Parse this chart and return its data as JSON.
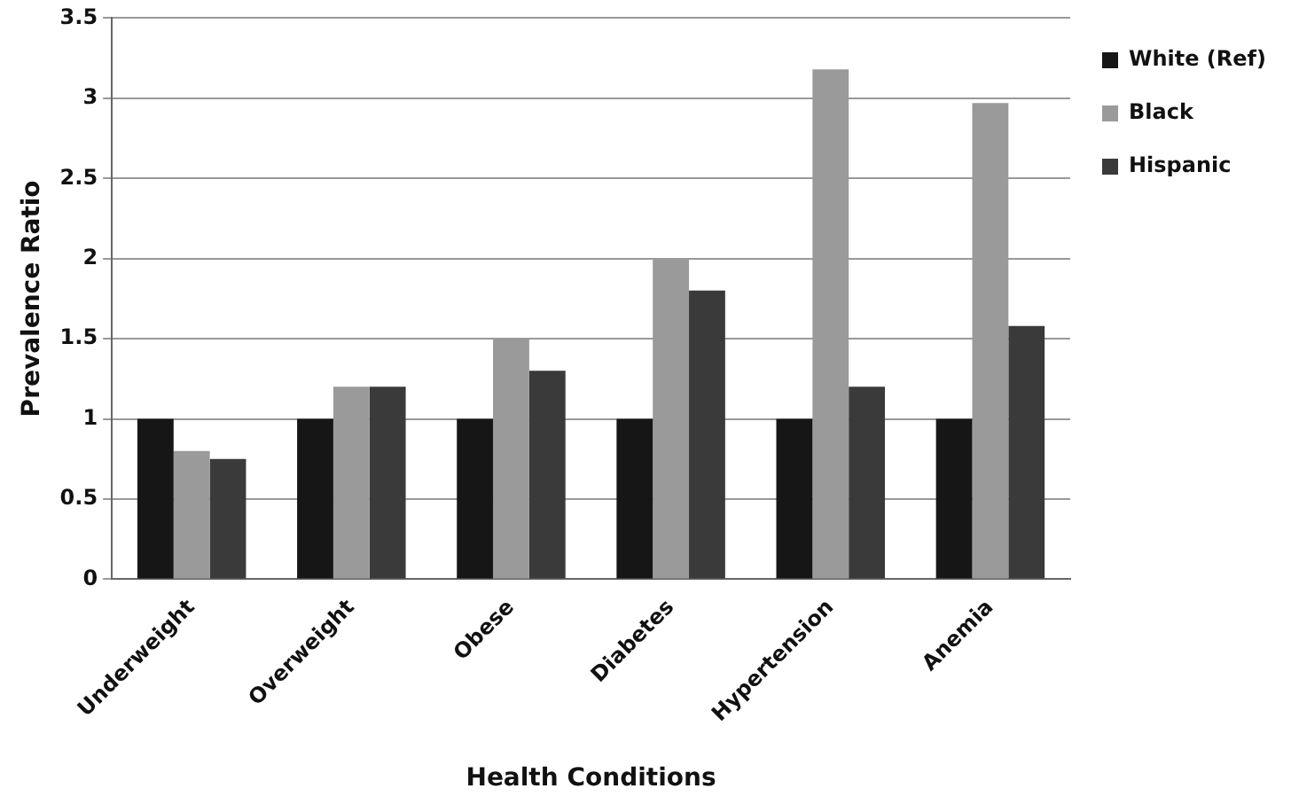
{
  "chart_data": {
    "type": "bar",
    "xlabel": "Health Conditions",
    "ylabel": "Prevalence Ratio",
    "categories": [
      "Underweight",
      "Overweight",
      "Obese",
      "Diabetes",
      "Hypertension",
      "Anemia"
    ],
    "series": [
      {
        "name": "White (Ref)",
        "color": "#161616",
        "values": [
          1,
          1,
          1,
          1,
          1,
          1
        ]
      },
      {
        "name": "Black",
        "color": "#9a9a9a",
        "values": [
          0.8,
          1.2,
          1.5,
          2,
          3.18,
          2.97
        ]
      },
      {
        "name": "Hispanic",
        "color": "#3a3a3a",
        "values": [
          0.75,
          1.2,
          1.3,
          1.8,
          1.2,
          1.58
        ]
      }
    ],
    "ylim": [
      0,
      3.5
    ],
    "yticks": [
      0,
      0.5,
      1,
      1.5,
      2,
      2.5,
      3,
      3.5
    ],
    "grid": "y",
    "legend": "right"
  }
}
